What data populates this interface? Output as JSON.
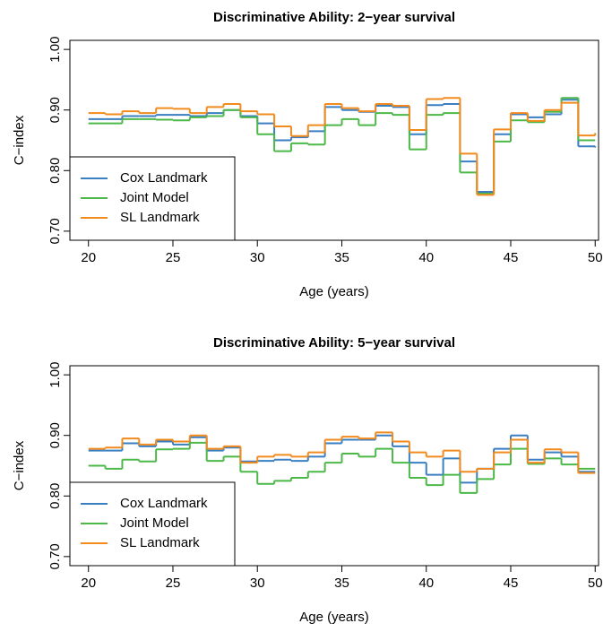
{
  "chart_data": [
    {
      "type": "line",
      "drawstyle": "steps-post",
      "title": "Discriminative Ability: 2−year survival",
      "x_label": "Age (years)",
      "y_label": "C−index",
      "x": [
        20,
        21,
        22,
        23,
        24,
        25,
        26,
        27,
        28,
        29,
        30,
        31,
        32,
        33,
        34,
        35,
        36,
        37,
        38,
        39,
        40,
        41,
        42,
        43,
        44,
        45,
        46,
        47,
        48,
        49,
        50
      ],
      "series": [
        {
          "name": "Cox Landmark",
          "color": "#3a7fc1",
          "values": [
            0.885,
            0.885,
            0.89,
            0.89,
            0.892,
            0.892,
            0.89,
            0.895,
            0.9,
            0.89,
            0.878,
            0.85,
            0.855,
            0.865,
            0.905,
            0.9,
            0.897,
            0.907,
            0.905,
            0.86,
            0.908,
            0.91,
            0.815,
            0.765,
            0.86,
            0.893,
            0.888,
            0.893,
            0.917,
            0.84,
            0.838
          ]
        },
        {
          "name": "Joint Model",
          "color": "#4cb848",
          "values": [
            0.878,
            0.878,
            0.885,
            0.885,
            0.884,
            0.883,
            0.888,
            0.89,
            0.9,
            0.888,
            0.86,
            0.832,
            0.845,
            0.843,
            0.875,
            0.885,
            0.875,
            0.895,
            0.892,
            0.835,
            0.892,
            0.895,
            0.797,
            0.762,
            0.848,
            0.883,
            0.88,
            0.897,
            0.92,
            0.85,
            0.85
          ]
        },
        {
          "name": "SL Landmark",
          "color": "#f28a1e",
          "values": [
            0.895,
            0.893,
            0.898,
            0.895,
            0.903,
            0.902,
            0.895,
            0.905,
            0.91,
            0.898,
            0.893,
            0.873,
            0.857,
            0.875,
            0.91,
            0.903,
            0.898,
            0.91,
            0.907,
            0.867,
            0.918,
            0.92,
            0.828,
            0.76,
            0.868,
            0.895,
            0.882,
            0.9,
            0.912,
            0.858,
            0.862
          ]
        }
      ],
      "xlim": [
        18.9,
        50.2
      ],
      "ylim": [
        0.685,
        1.015
      ],
      "xticks": [
        20,
        25,
        30,
        35,
        40,
        45,
        50
      ],
      "yticks": [
        {
          "value": 0.7,
          "label": "0.70"
        },
        {
          "value": 0.8,
          "label": "0.80"
        },
        {
          "value": 0.9,
          "label": "0.90"
        },
        {
          "value": 1.0,
          "label": "1.00"
        }
      ],
      "legend": "lower left"
    },
    {
      "type": "line",
      "drawstyle": "steps-post",
      "title": "Discriminative Ability: 5−year survival",
      "x_label": "Age (years)",
      "y_label": "C−index",
      "x": [
        20,
        21,
        22,
        23,
        24,
        25,
        26,
        27,
        28,
        29,
        30,
        31,
        32,
        33,
        34,
        35,
        36,
        37,
        38,
        39,
        40,
        41,
        42,
        43,
        44,
        45,
        46,
        47,
        48,
        49,
        50
      ],
      "series": [
        {
          "name": "Cox Landmark",
          "color": "#3a7fc1",
          "values": [
            0.875,
            0.875,
            0.887,
            0.882,
            0.89,
            0.885,
            0.897,
            0.875,
            0.88,
            0.857,
            0.858,
            0.86,
            0.858,
            0.865,
            0.887,
            0.893,
            0.893,
            0.9,
            0.882,
            0.855,
            0.835,
            0.862,
            0.822,
            0.845,
            0.878,
            0.9,
            0.86,
            0.872,
            0.865,
            0.84,
            0.84
          ]
        },
        {
          "name": "Joint Model",
          "color": "#4cb848",
          "values": [
            0.85,
            0.845,
            0.86,
            0.857,
            0.877,
            0.878,
            0.888,
            0.858,
            0.865,
            0.84,
            0.82,
            0.825,
            0.83,
            0.84,
            0.855,
            0.87,
            0.865,
            0.878,
            0.855,
            0.83,
            0.818,
            0.835,
            0.805,
            0.828,
            0.852,
            0.878,
            0.853,
            0.862,
            0.852,
            0.845,
            0.845
          ]
        },
        {
          "name": "SL Landmark",
          "color": "#f28a1e",
          "values": [
            0.878,
            0.88,
            0.895,
            0.885,
            0.893,
            0.89,
            0.9,
            0.878,
            0.882,
            0.855,
            0.865,
            0.868,
            0.865,
            0.872,
            0.893,
            0.898,
            0.895,
            0.905,
            0.89,
            0.872,
            0.865,
            0.875,
            0.84,
            0.845,
            0.872,
            0.893,
            0.855,
            0.877,
            0.872,
            0.838,
            0.838
          ]
        }
      ],
      "xlim": [
        18.9,
        50.2
      ],
      "ylim": [
        0.685,
        1.015
      ],
      "xticks": [
        20,
        25,
        30,
        35,
        40,
        45,
        50
      ],
      "yticks": [
        {
          "value": 0.7,
          "label": "0.70"
        },
        {
          "value": 0.8,
          "label": "0.80"
        },
        {
          "value": 0.9,
          "label": "0.90"
        },
        {
          "value": 1.0,
          "label": "1.00"
        }
      ],
      "legend": "lower left"
    }
  ]
}
